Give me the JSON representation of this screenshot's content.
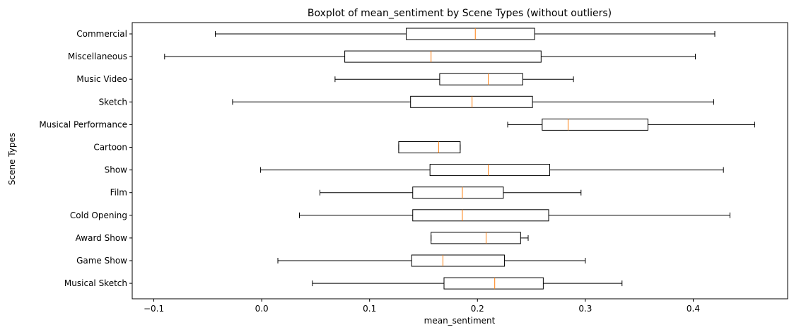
{
  "chart_data": {
    "type": "boxplot",
    "orientation": "horizontal",
    "title": "Boxplot of mean_sentiment by Scene Types (without outliers)",
    "xlabel": "mean_sentiment",
    "ylabel": "Scene Types",
    "xlim": [
      -0.12,
      0.4875
    ],
    "xticks": [
      -0.1,
      0.0,
      0.1,
      0.2,
      0.3,
      0.4
    ],
    "xtick_labels": [
      "−0.1",
      "0.0",
      "0.1",
      "0.2",
      "0.3",
      "0.4"
    ],
    "grid": false,
    "box_color": "#000000",
    "median_color": "#ff7f0e",
    "categories": [
      "Commercial",
      "Miscellaneous",
      "Music Video",
      "Sketch",
      "Musical Performance",
      "Cartoon",
      "Show",
      "Film",
      "Cold Opening",
      "Award Show",
      "Game Show",
      "Musical Sketch"
    ],
    "boxes": [
      {
        "whisker_low": -0.043,
        "q1": 0.134,
        "median": 0.198,
        "q3": 0.253,
        "whisker_high": 0.42
      },
      {
        "whisker_low": -0.09,
        "q1": 0.077,
        "median": 0.157,
        "q3": 0.259,
        "whisker_high": 0.402
      },
      {
        "whisker_low": 0.068,
        "q1": 0.165,
        "median": 0.21,
        "q3": 0.242,
        "whisker_high": 0.289
      },
      {
        "whisker_low": -0.027,
        "q1": 0.138,
        "median": 0.195,
        "q3": 0.251,
        "whisker_high": 0.419
      },
      {
        "whisker_low": 0.228,
        "q1": 0.26,
        "median": 0.284,
        "q3": 0.358,
        "whisker_high": 0.457
      },
      {
        "whisker_low": 0.127,
        "q1": 0.127,
        "median": 0.164,
        "q3": 0.184,
        "whisker_high": 0.184
      },
      {
        "whisker_low": -0.001,
        "q1": 0.156,
        "median": 0.21,
        "q3": 0.267,
        "whisker_high": 0.428
      },
      {
        "whisker_low": 0.054,
        "q1": 0.14,
        "median": 0.186,
        "q3": 0.224,
        "whisker_high": 0.296
      },
      {
        "whisker_low": 0.035,
        "q1": 0.14,
        "median": 0.186,
        "q3": 0.266,
        "whisker_high": 0.434
      },
      {
        "whisker_low": 0.157,
        "q1": 0.157,
        "median": 0.208,
        "q3": 0.24,
        "whisker_high": 0.247
      },
      {
        "whisker_low": 0.015,
        "q1": 0.139,
        "median": 0.168,
        "q3": 0.225,
        "whisker_high": 0.3
      },
      {
        "whisker_low": 0.047,
        "q1": 0.169,
        "median": 0.216,
        "q3": 0.261,
        "whisker_high": 0.334
      }
    ]
  }
}
